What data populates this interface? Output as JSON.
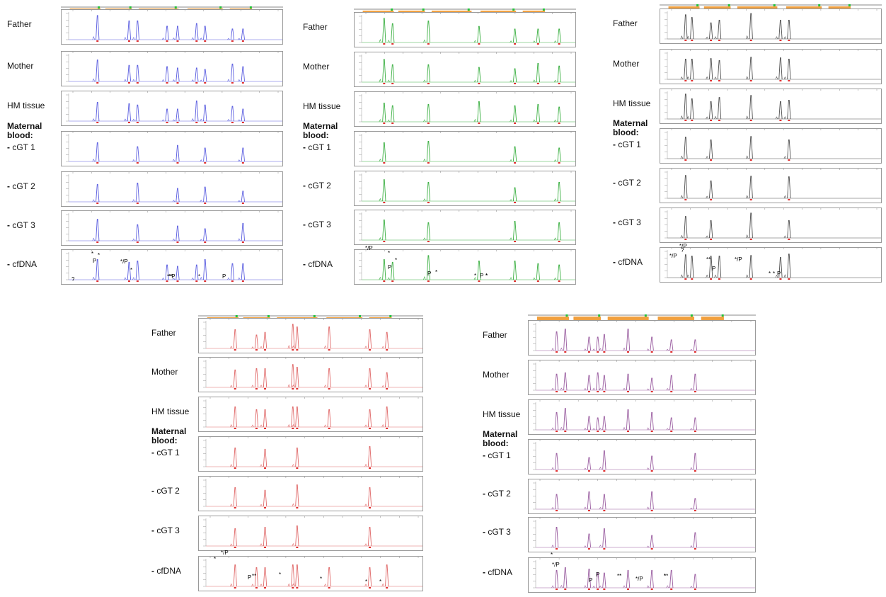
{
  "colors": {
    "figure_1": "#5b5ee0",
    "figure_2": "#3cb043",
    "figure_3": "#505050",
    "figure_4": "#e06a6a",
    "figure_5": "#9a5da0",
    "header_bar": "#f0a040",
    "header_marker": "#22c33a",
    "allele_tick": "#e03030"
  },
  "labels": {
    "father": "Father",
    "mother": "Mother",
    "hm_tissue": "HM tissue",
    "maternal_1": "Maternal",
    "maternal_2": "blood:",
    "cgt1": "cGT 1",
    "cgt2": "cGT 2",
    "cgt3": "cGT 3",
    "cfdna": "cfDNA"
  },
  "figures": [
    {
      "name": "panel-blue",
      "cfdna_marks": [
        "?",
        "*",
        "P",
        "*",
        "*/P",
        "*",
        "**P",
        "**",
        "*",
        "P"
      ]
    },
    {
      "name": "panel-green",
      "cfdna_marks": [
        "*/P",
        "*",
        "P",
        "*",
        "P",
        "*",
        "*",
        "P",
        "*",
        "*"
      ]
    },
    {
      "name": "panel-gray",
      "cfdna_marks": [
        "*/P",
        "*/P",
        "?",
        "**",
        "P",
        "*/P",
        "*",
        "*",
        "P"
      ]
    },
    {
      "name": "panel-red",
      "cfdna_marks": [
        "*",
        "*/P",
        "P",
        "**",
        "*",
        "*",
        "*",
        "*"
      ]
    },
    {
      "name": "panel-purple",
      "cfdna_marks": [
        "*",
        "*/P",
        "P",
        "P",
        "**",
        "*/P",
        "*",
        "**"
      ]
    }
  ]
}
